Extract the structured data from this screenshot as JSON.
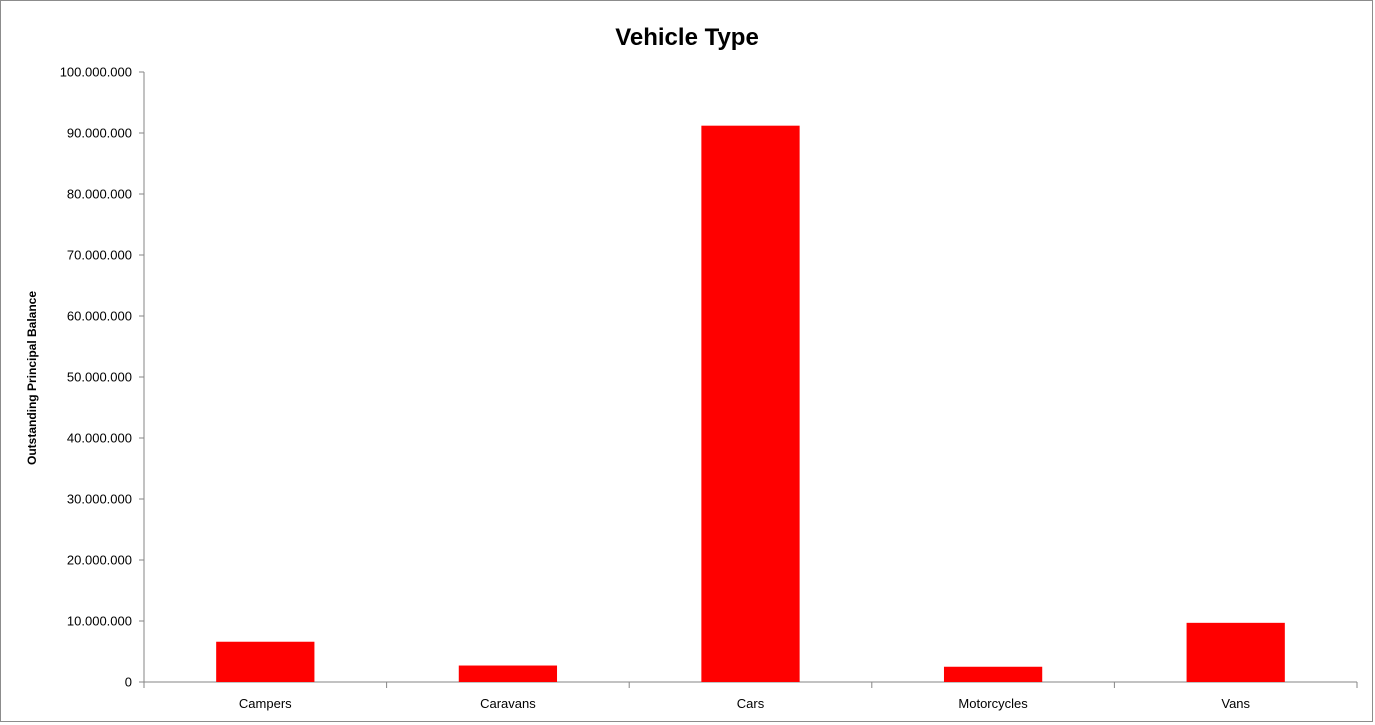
{
  "chart_data": {
    "type": "bar",
    "title": "Vehicle Type",
    "xlabel": "",
    "ylabel": "Outstanding Principal Balance",
    "categories": [
      "Campers",
      "Caravans",
      "Cars",
      "Motorcycles",
      "Vans"
    ],
    "values": [
      6600000,
      2700000,
      91200000,
      2500000,
      9700000
    ],
    "ylim": [
      0,
      100000000
    ],
    "yticks": [
      0,
      10000000,
      20000000,
      30000000,
      40000000,
      50000000,
      60000000,
      70000000,
      80000000,
      90000000,
      100000000
    ],
    "ytick_labels": [
      "0",
      "10.000.000",
      "20.000.000",
      "30.000.000",
      "40.000.000",
      "50.000.000",
      "60.000.000",
      "70.000.000",
      "80.000.000",
      "90.000.000",
      "100.000.000"
    ],
    "grid": false,
    "legend": "none",
    "bar_color": "#ff0000"
  }
}
